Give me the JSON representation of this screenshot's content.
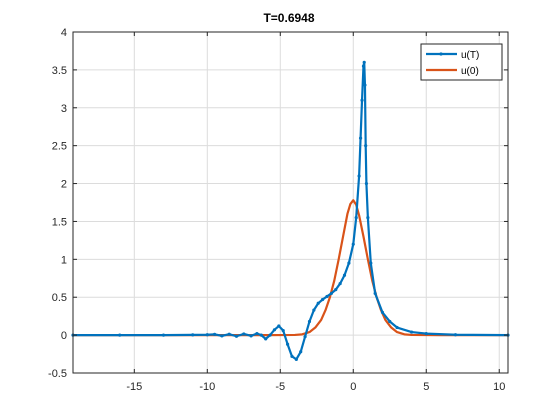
{
  "chart_data": {
    "type": "line",
    "title": "T=0.6948",
    "xlabel": "",
    "ylabel": "",
    "xlim": [
      -19.2,
      10.6
    ],
    "ylim": [
      -0.5,
      4
    ],
    "grid": true,
    "legend_position": "top-right",
    "x_ticks": [
      -15,
      -10,
      -5,
      0,
      5,
      10
    ],
    "x_tick_labels": [
      "-15",
      "-10",
      "-5",
      "0",
      "5",
      "10"
    ],
    "y_ticks": [
      -0.5,
      0,
      0.5,
      1,
      1.5,
      2,
      2.5,
      3,
      3.5,
      4
    ],
    "y_tick_labels": [
      "-0.5",
      "0",
      "0.5",
      "1",
      "1.5",
      "2",
      "2.5",
      "3",
      "3.5",
      "4"
    ],
    "series": [
      {
        "name": "u(T)",
        "color": "#0072BD",
        "marker": "dot",
        "x": [
          -19.2,
          -16,
          -13,
          -11,
          -10,
          -9.5,
          -9,
          -8.5,
          -8,
          -7.5,
          -7,
          -6.6,
          -6.3,
          -6,
          -5.7,
          -5.4,
          -5.1,
          -4.8,
          -4.5,
          -4.2,
          -3.9,
          -3.6,
          -3.3,
          -3.0,
          -2.7,
          -2.4,
          -2.1,
          -1.8,
          -1.5,
          -1.2,
          -0.9,
          -0.6,
          -0.3,
          0,
          0.2,
          0.4,
          0.5,
          0.6,
          0.7,
          0.75,
          0.8,
          0.85,
          0.9,
          1.0,
          1.2,
          1.5,
          2,
          2.5,
          3,
          4,
          5,
          7,
          10.6
        ],
        "y": [
          0,
          0,
          0,
          0.003,
          0.005,
          0.01,
          -0.01,
          0.012,
          -0.015,
          0.015,
          -0.01,
          0.02,
          0.0,
          -0.05,
          0.0,
          0.07,
          0.12,
          0.06,
          -0.12,
          -0.28,
          -0.32,
          -0.22,
          -0.02,
          0.18,
          0.33,
          0.42,
          0.47,
          0.51,
          0.55,
          0.6,
          0.68,
          0.79,
          0.95,
          1.2,
          1.55,
          2.1,
          2.6,
          3.1,
          3.55,
          3.6,
          3.3,
          2.5,
          2.0,
          1.55,
          0.95,
          0.55,
          0.3,
          0.18,
          0.1,
          0.04,
          0.02,
          0.005,
          0.0
        ]
      },
      {
        "name": "u(0)",
        "color": "#D95319",
        "marker": "none",
        "x": [
          -19.2,
          -6,
          -4,
          -3.5,
          -3,
          -2.6,
          -2.2,
          -1.9,
          -1.6,
          -1.3,
          -1,
          -0.7,
          -0.4,
          -0.2,
          0,
          0.2,
          0.4,
          0.7,
          1.0,
          1.3,
          1.6,
          1.9,
          2.2,
          2.6,
          3,
          3.5,
          4,
          6,
          10.6
        ],
        "y": [
          0,
          0,
          0.002,
          0.01,
          0.04,
          0.1,
          0.2,
          0.33,
          0.5,
          0.72,
          1.0,
          1.3,
          1.6,
          1.73,
          1.78,
          1.72,
          1.58,
          1.3,
          1.0,
          0.72,
          0.5,
          0.33,
          0.2,
          0.1,
          0.04,
          0.01,
          0.002,
          0,
          0
        ]
      }
    ]
  }
}
